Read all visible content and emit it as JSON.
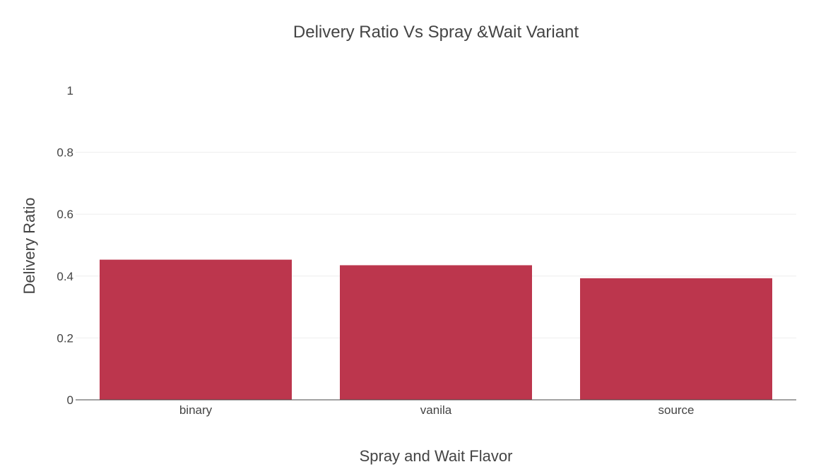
{
  "chart_data": {
    "type": "bar",
    "title": "Delivery Ratio Vs Spray &Wait Variant",
    "xlabel": "Spray and Wait Flavor",
    "ylabel": "Delivery Ratio",
    "categories": [
      "binary",
      "vanila",
      "source"
    ],
    "values": [
      0.453,
      0.435,
      0.393
    ],
    "ylim": [
      0,
      1
    ],
    "yticks": [
      0,
      0.2,
      0.4,
      0.6,
      0.8,
      1
    ],
    "ytick_labels": [
      "0",
      "0.2",
      "0.4",
      "0.6",
      "0.8",
      "1"
    ],
    "bar_color": "#b7273f",
    "grid": true,
    "legend": "none"
  }
}
